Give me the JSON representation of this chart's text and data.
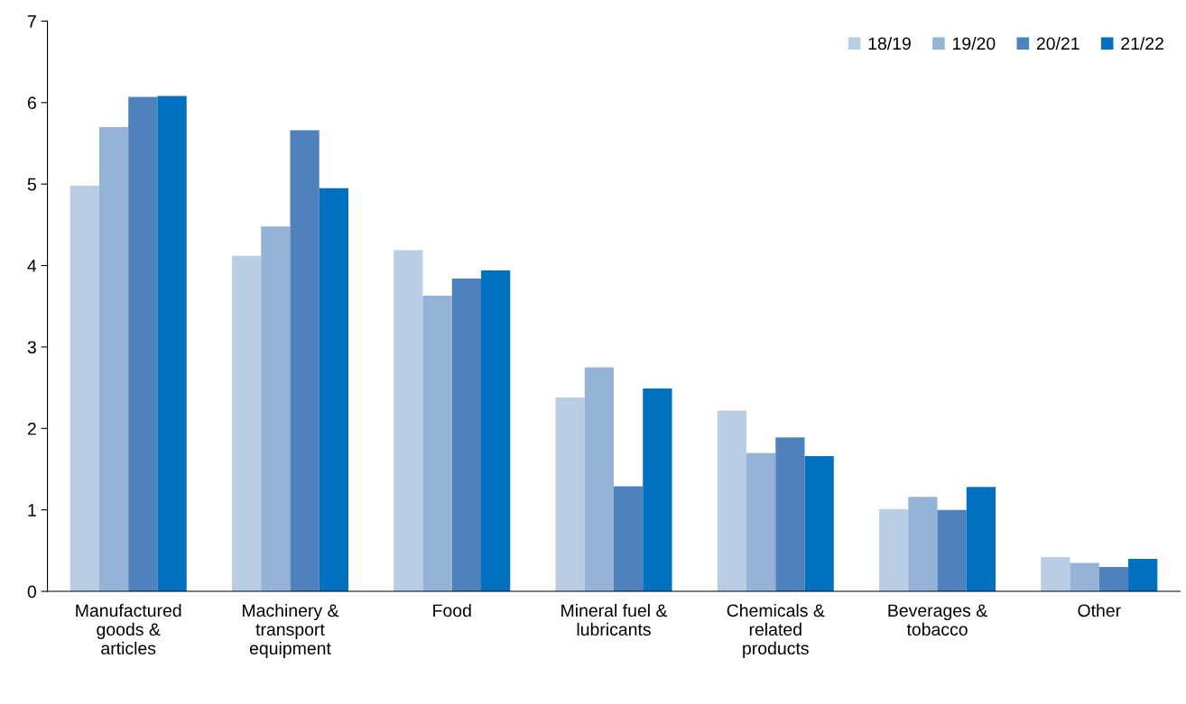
{
  "chart_data": {
    "type": "bar",
    "categories": [
      "Manufactured\ngoods &\narticles",
      "Machinery &\ntransport\nequipment",
      "Food",
      "Mineral fuel &\nlubricants",
      "Chemicals &\nrelated\nproducts",
      "Beverages &\ntobacco",
      "Other"
    ],
    "series": [
      {
        "name": "18/19",
        "color": "#b9cde5",
        "values": [
          4.98,
          4.12,
          4.19,
          2.38,
          2.22,
          1.01,
          0.42
        ]
      },
      {
        "name": "19/20",
        "color": "#95b3d7",
        "values": [
          5.7,
          4.48,
          3.63,
          2.75,
          1.7,
          1.16,
          0.35
        ]
      },
      {
        "name": "20/21",
        "color": "#4f81bd",
        "values": [
          6.07,
          5.66,
          3.84,
          1.29,
          1.89,
          1.0,
          0.3
        ]
      },
      {
        "name": "21/22",
        "color": "#0070c0",
        "values": [
          6.08,
          4.95,
          3.94,
          2.49,
          1.66,
          1.28,
          0.4
        ]
      }
    ],
    "ylim": [
      0,
      7
    ],
    "yticks": [
      0,
      1,
      2,
      3,
      4,
      5,
      6,
      7
    ],
    "grid": false,
    "legend": "top right"
  }
}
